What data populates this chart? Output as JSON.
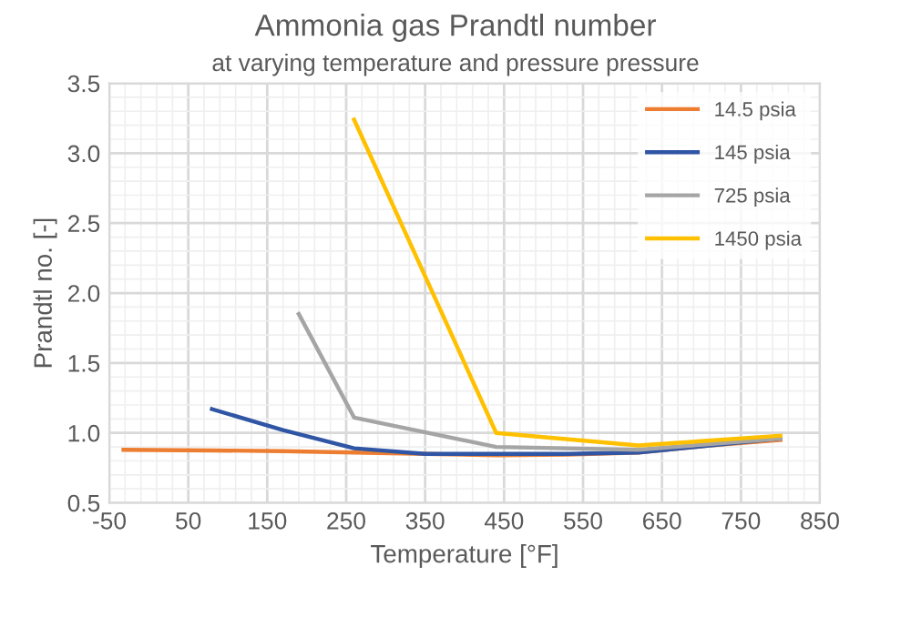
{
  "chart_data": {
    "type": "line",
    "title": "Ammonia gas Prandtl number",
    "subtitle": "at varying temperature and pressure pressure",
    "xlabel": "Temperature [°F]",
    "ylabel": "Prandtl no. [-]",
    "xlim": [
      -50,
      850
    ],
    "xticks": [
      -50,
      50,
      150,
      250,
      350,
      450,
      550,
      650,
      750,
      850
    ],
    "ylim": [
      0.5,
      3.5
    ],
    "yticks": [
      {
        "value": 0.5,
        "label": "0.5"
      },
      {
        "value": 1.0,
        "label": "1.0"
      },
      {
        "value": 1.5,
        "label": "1.5"
      },
      {
        "value": 2.0,
        "label": "2.0"
      },
      {
        "value": 2.5,
        "label": "2.5"
      },
      {
        "value": 3.0,
        "label": "3.0"
      },
      {
        "value": 3.5,
        "label": "3.5"
      }
    ],
    "grid": true,
    "legend": "top right",
    "marker": "none",
    "line_style": "solid",
    "series": [
      {
        "name": "14.5 psia",
        "color": "#ed7d31",
        "x": [
          -32,
          80,
          170,
          260,
          350,
          440,
          530,
          620,
          710,
          800
        ],
        "values": [
          0.88,
          0.875,
          0.87,
          0.86,
          0.85,
          0.84,
          0.845,
          0.86,
          0.91,
          0.95
        ]
      },
      {
        "name": "145 psia",
        "color": "#2f55a4",
        "x": [
          80,
          170,
          260,
          350,
          440,
          530,
          620,
          710,
          800
        ],
        "values": [
          1.17,
          1.02,
          0.89,
          0.85,
          0.85,
          0.85,
          0.86,
          0.91,
          0.96
        ]
      },
      {
        "name": "725 psia",
        "color": "#a5a5a5",
        "x": [
          190,
          260,
          440,
          620,
          800
        ],
        "values": [
          1.85,
          1.11,
          0.9,
          0.88,
          0.96
        ]
      },
      {
        "name": "1450 psia",
        "color": "#ffc000",
        "x": [
          260,
          440,
          620,
          800
        ],
        "values": [
          3.24,
          1.0,
          0.91,
          0.98
        ]
      }
    ]
  }
}
